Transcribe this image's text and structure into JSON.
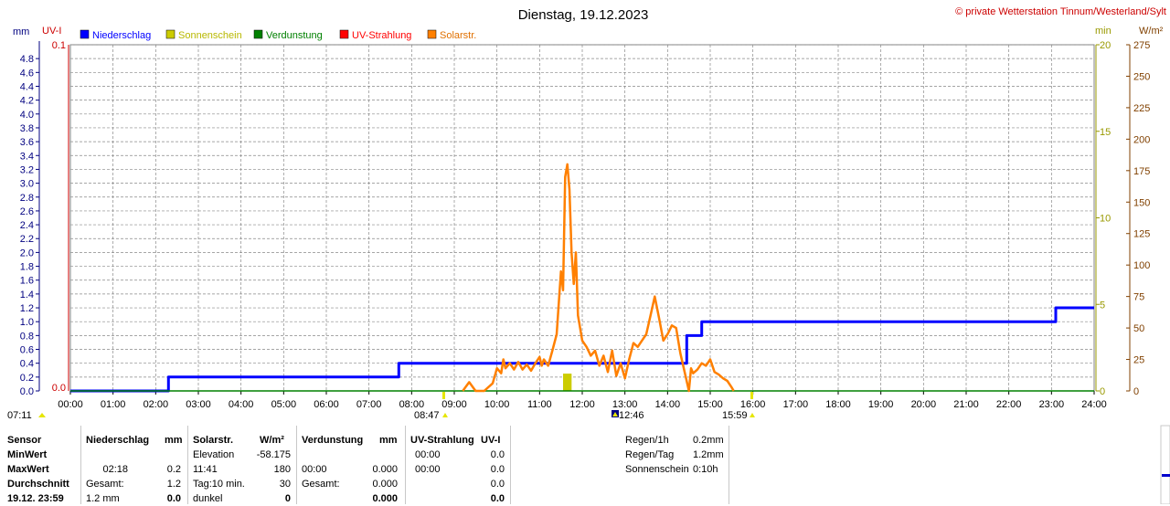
{
  "header": {
    "title": "Dienstag, 19.12.2023",
    "copyright": "© private Wetterstation Tinnum/Westerland/Sylt"
  },
  "axis_units": {
    "left_outer": "mm",
    "left_inner": "UV-I",
    "right_inner": "min",
    "right_outer": "W/m²"
  },
  "legend": [
    {
      "label": "Niederschlag",
      "color": "#0000ff"
    },
    {
      "label": "Sonnenschein",
      "color": "#cccc00"
    },
    {
      "label": "Verdunstung",
      "color": "#008000"
    },
    {
      "label": "UV-Strahlung",
      "color": "#ff0000"
    },
    {
      "label": "Solarstr.",
      "color": "#ff8000"
    }
  ],
  "colors": {
    "rain": "#0000ff",
    "sun": "#cccc00",
    "evap": "#008000",
    "uv": "#cc0000",
    "solar": "#ff8000",
    "rain_axis": "#000080",
    "sun_axis": "#999900",
    "solar_axis": "#804000"
  },
  "markers": {
    "sunrise": "07:11",
    "first_sun": "08:47",
    "noon": "12:46",
    "last_sun": "15:59"
  },
  "chart_data": {
    "type": "line",
    "xlabel": "",
    "x_ticks": [
      "00:00",
      "01:00",
      "02:00",
      "03:00",
      "04:00",
      "05:00",
      "06:00",
      "07:00",
      "08:00",
      "09:00",
      "10:00",
      "11:00",
      "12:00",
      "13:00",
      "14:00",
      "15:00",
      "16:00",
      "17:00",
      "18:00",
      "19:00",
      "20:00",
      "21:00",
      "22:00",
      "23:00",
      "24:00"
    ],
    "xlim": [
      0,
      24
    ],
    "axes": {
      "rain": {
        "ylim": [
          0,
          5
        ],
        "ticks": [
          "0.0",
          "0.2",
          "0.4",
          "0.6",
          "0.8",
          "1.0",
          "1.2",
          "1.4",
          "1.6",
          "1.8",
          "2.0",
          "2.2",
          "2.4",
          "2.6",
          "2.8",
          "3.0",
          "3.2",
          "3.4",
          "3.6",
          "3.8",
          "4.0",
          "4.2",
          "4.4",
          "4.6",
          "4.8"
        ]
      },
      "uv": {
        "ylim": [
          0,
          0.1
        ],
        "ticks": [
          "0.0",
          "0.1"
        ]
      },
      "sun": {
        "ylim": [
          0,
          20
        ],
        "ticks": [
          "0",
          "5",
          "10",
          "15",
          "20"
        ]
      },
      "solar": {
        "ylim": [
          0,
          275
        ],
        "ticks": [
          "0",
          "25",
          "50",
          "75",
          "100",
          "125",
          "150",
          "175",
          "200",
          "225",
          "250",
          "275"
        ]
      }
    },
    "grid": true,
    "series": [
      {
        "name": "Niederschlag",
        "kind": "step",
        "points": [
          [
            0,
            0
          ],
          [
            2.3,
            0
          ],
          [
            2.3,
            0.2
          ],
          [
            7.7,
            0.2
          ],
          [
            7.7,
            0.4
          ],
          [
            14.45,
            0.4
          ],
          [
            14.45,
            0.8
          ],
          [
            14.8,
            0.8
          ],
          [
            14.8,
            1.0
          ],
          [
            23.1,
            1.0
          ],
          [
            23.1,
            1.2
          ],
          [
            24,
            1.2
          ]
        ]
      },
      {
        "name": "Sonnenschein",
        "kind": "bar",
        "bars": [
          [
            11.55,
            11.75,
            1.0
          ]
        ]
      },
      {
        "name": "Verdunstung",
        "kind": "line",
        "points": [
          [
            0,
            0
          ],
          [
            24,
            0
          ]
        ]
      },
      {
        "name": "Solarstr.",
        "kind": "line",
        "points": [
          [
            9.2,
            0
          ],
          [
            9.35,
            7
          ],
          [
            9.5,
            0
          ],
          [
            9.7,
            0
          ],
          [
            9.9,
            6
          ],
          [
            10.0,
            18
          ],
          [
            10.1,
            14
          ],
          [
            10.15,
            25
          ],
          [
            10.2,
            18
          ],
          [
            10.3,
            22
          ],
          [
            10.4,
            17
          ],
          [
            10.5,
            23
          ],
          [
            10.6,
            17
          ],
          [
            10.7,
            21
          ],
          [
            10.8,
            16
          ],
          [
            10.9,
            22
          ],
          [
            11.0,
            27
          ],
          [
            11.05,
            20
          ],
          [
            11.1,
            25
          ],
          [
            11.2,
            20
          ],
          [
            11.3,
            32
          ],
          [
            11.4,
            45
          ],
          [
            11.5,
            95
          ],
          [
            11.55,
            80
          ],
          [
            11.6,
            170
          ],
          [
            11.65,
            180
          ],
          [
            11.7,
            160
          ],
          [
            11.75,
            110
          ],
          [
            11.8,
            85
          ],
          [
            11.85,
            110
          ],
          [
            11.9,
            60
          ],
          [
            12.0,
            40
          ],
          [
            12.1,
            35
          ],
          [
            12.2,
            28
          ],
          [
            12.3,
            32
          ],
          [
            12.4,
            20
          ],
          [
            12.5,
            28
          ],
          [
            12.6,
            15
          ],
          [
            12.7,
            32
          ],
          [
            12.8,
            12
          ],
          [
            12.9,
            22
          ],
          [
            13.0,
            10
          ],
          [
            13.1,
            25
          ],
          [
            13.2,
            38
          ],
          [
            13.3,
            35
          ],
          [
            13.4,
            40
          ],
          [
            13.5,
            45
          ],
          [
            13.6,
            60
          ],
          [
            13.7,
            75
          ],
          [
            13.8,
            58
          ],
          [
            13.9,
            40
          ],
          [
            14.0,
            45
          ],
          [
            14.1,
            52
          ],
          [
            14.2,
            50
          ],
          [
            14.3,
            30
          ],
          [
            14.4,
            15
          ],
          [
            14.5,
            0
          ],
          [
            14.55,
            18
          ],
          [
            14.6,
            14
          ],
          [
            14.7,
            17
          ],
          [
            14.8,
            22
          ],
          [
            14.9,
            20
          ],
          [
            15.0,
            25
          ],
          [
            15.1,
            15
          ],
          [
            15.2,
            13
          ],
          [
            15.3,
            10
          ],
          [
            15.4,
            8
          ],
          [
            15.5,
            3
          ],
          [
            15.55,
            0
          ]
        ]
      }
    ]
  },
  "stats": {
    "headers": {
      "sensor": "Sensor",
      "rain": "Niederschlag",
      "rain_unit": "mm",
      "solar": "Solarstr.",
      "solar_unit": "W/m²",
      "evap": "Verdunstung",
      "evap_unit": "mm",
      "uv": "UV-Strahlung",
      "uv_unit": "UV-I"
    },
    "rows": [
      {
        "label": "MinWert",
        "rain_time": "",
        "rain_val": "",
        "solar_label": "Elevation",
        "solar_val": "-58.175",
        "evap_time": "",
        "evap_val": "",
        "uv_time": "00:00",
        "uv_val": "0.0"
      },
      {
        "label": "MaxWert",
        "rain_time": "02:18",
        "rain_val": "0.2",
        "solar_label": "11:41",
        "solar_val": "180",
        "evap_time": "00:00",
        "evap_val": "0.000",
        "uv_time": "00:00",
        "uv_val": "0.0"
      },
      {
        "label": "Durchschnitt",
        "rain_time": "Gesamt:",
        "rain_val": "1.2",
        "solar_label": "Tag:10 min.",
        "solar_val": "30",
        "evap_time": "Gesamt:",
        "evap_val": "0.000",
        "uv_time": "",
        "uv_val": "0.0"
      },
      {
        "label": "19.12. 23:59",
        "rain_time": "1.2 mm",
        "rain_val": "0.0",
        "solar_label": "dunkel",
        "solar_val": "0",
        "evap_time": "",
        "evap_val": "0.000",
        "uv_time": "",
        "uv_val": "0.0"
      }
    ],
    "summary": [
      {
        "label": "Regen/1h",
        "value": "0.2mm"
      },
      {
        "label": "Regen/Tag",
        "value": "1.2mm"
      },
      {
        "label": "Sonnenschein",
        "value": "0:10h"
      }
    ]
  }
}
